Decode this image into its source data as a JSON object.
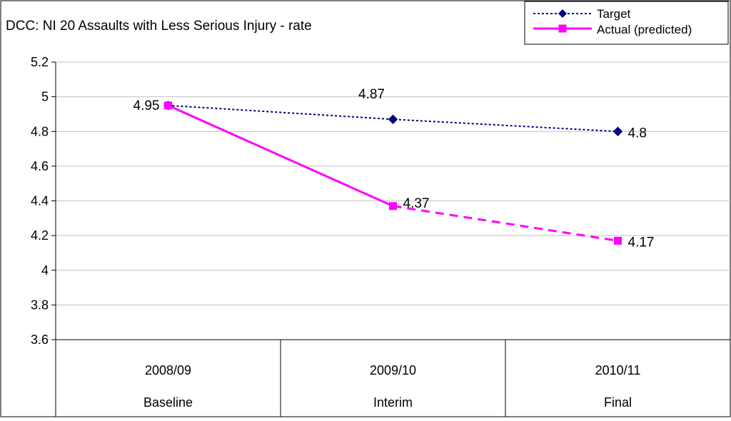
{
  "chart_data": {
    "type": "line",
    "title": "DCC: NI 20 Assaults with Less Serious Injury - rate",
    "xlabel": "",
    "ylabel": "",
    "ylim": [
      3.6,
      5.2
    ],
    "ytick_step": 0.2,
    "yticks": [
      "3.6",
      "3.8",
      "4",
      "4.2",
      "4.4",
      "4.6",
      "4.8",
      "5",
      "5.2"
    ],
    "grid": true,
    "legend_position": "top-right",
    "categories": [
      "2008/09",
      "2009/10",
      "2010/11"
    ],
    "category_labels": [
      "Baseline",
      "Interim",
      "Final"
    ],
    "series": [
      {
        "name": "Target",
        "values": [
          4.95,
          4.87,
          4.8
        ],
        "data_labels": [
          "",
          "4.87",
          "4.8"
        ],
        "color": "#000080",
        "line_style": "dotted",
        "marker": "diamond"
      },
      {
        "name": "Actual (predicted)",
        "values": [
          4.95,
          4.37,
          4.17
        ],
        "data_labels": [
          "4.95",
          "4.37",
          "4.17"
        ],
        "color": "#ff00ff",
        "line_style": "solid then dashed (predicted)",
        "marker": "square"
      }
    ]
  }
}
